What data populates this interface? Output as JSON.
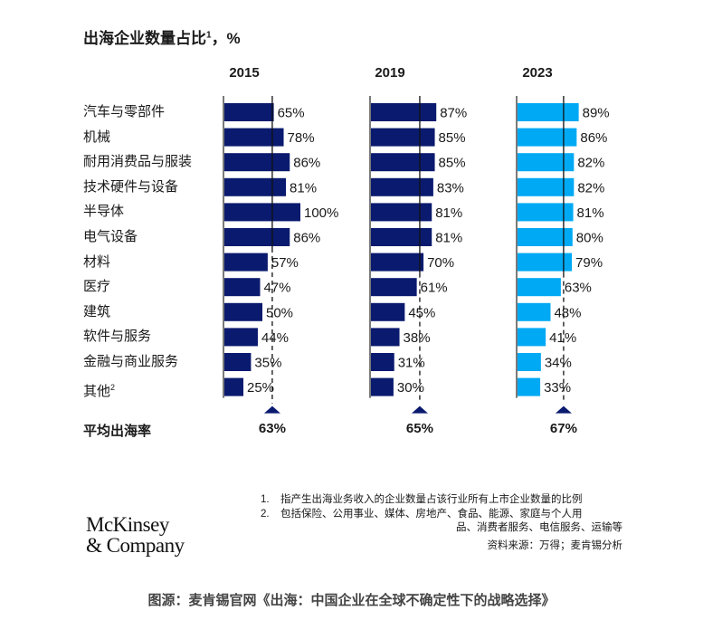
{
  "title": "出海企业数量占比",
  "title_sup": "1",
  "title_suffix": "，%",
  "colors": {
    "dark_bar": "#0a1a6e",
    "light_bar": "#00a9f4",
    "axis": "#222222",
    "marker": "#0a1a6e"
  },
  "chart_data": {
    "type": "bar",
    "orientation": "horizontal",
    "title": "出海企业数量占比1，%",
    "categories": [
      "汽车与零部件",
      "机械",
      "耐用消费品与服装",
      "技术硬件与设备",
      "半导体",
      "电气设备",
      "材料",
      "医疗",
      "建筑",
      "软件与服务",
      "金融与商业服务",
      "其他"
    ],
    "category_sups": [
      "",
      "",
      "",
      "",
      "",
      "",
      "",
      "",
      "",
      "",
      "",
      "2"
    ],
    "series": [
      {
        "name": "2015",
        "values": [
          65,
          78,
          86,
          81,
          100,
          86,
          57,
          47,
          50,
          44,
          35,
          25
        ],
        "average": 63,
        "color": "#0a1a6e"
      },
      {
        "name": "2019",
        "values": [
          87,
          85,
          85,
          83,
          81,
          81,
          70,
          61,
          45,
          38,
          31,
          30
        ],
        "average": 65,
        "color": "#0a1a6e"
      },
      {
        "name": "2023",
        "values": [
          89,
          86,
          82,
          82,
          81,
          80,
          79,
          63,
          48,
          41,
          34,
          33
        ],
        "average": 67,
        "color": "#00a9f4"
      }
    ],
    "value_suffix": "%",
    "average_label": "平均出海率",
    "xlim": [
      0,
      100
    ]
  },
  "notes": [
    {
      "num": "1.",
      "text": "指产生出海业务收入的企业数量占该行业所有上市企业数量的比例"
    },
    {
      "num": "2.",
      "text": "包括保险、公用事业、媒体、房地产、食品、能源、家庭与个人用",
      "cont": "品、消费者服务、电信服务、运输等"
    }
  ],
  "source": "资料来源：万得；麦肯锡分析",
  "logo": {
    "line1": "McKinsey",
    "line2": "& Company"
  },
  "caption": "图源：麦肯锡官网《出海：中国企业在全球不确定性下的战略选择》"
}
